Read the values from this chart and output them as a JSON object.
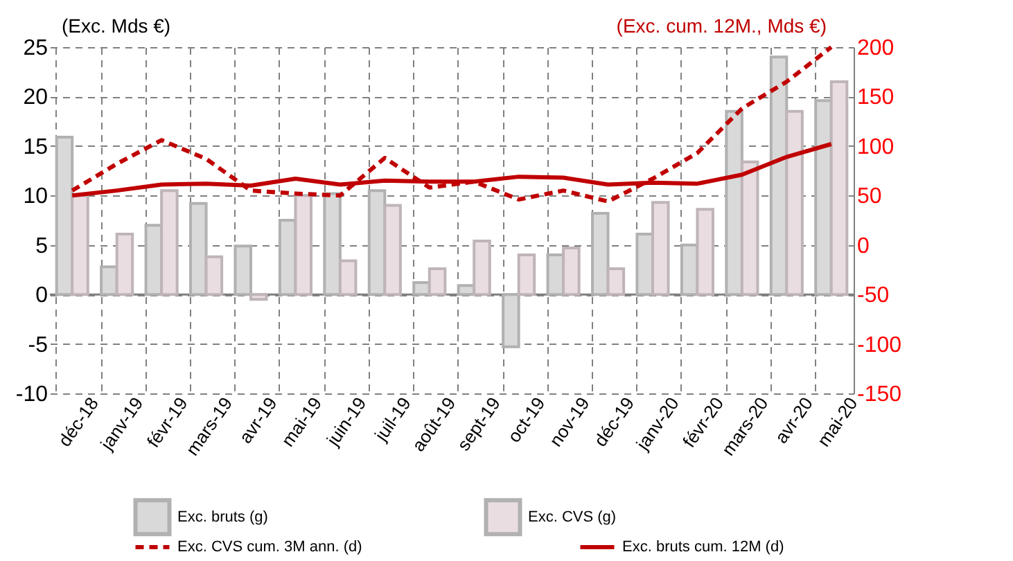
{
  "chart_data": {
    "type": "bar",
    "ylabel": "(Exc. Mds €)",
    "y2label": "(Exc. cum. 12M., Mds €)",
    "categories": [
      "déc-18",
      "janv-19",
      "févr-19",
      "mars-19",
      "avr-19",
      "mai-19",
      "juin-19",
      "juil-19",
      "août-19",
      "sept-19",
      "oct-19",
      "nov-19",
      "déc-19",
      "janv-20",
      "févr-20",
      "mars-20",
      "avr-20",
      "mai-20"
    ],
    "series": [
      {
        "name": "Exc. bruts (g)",
        "type": "bar",
        "color": "#d9d9d9",
        "values": [
          15.9,
          2.8,
          7.0,
          9.2,
          4.9,
          7.5,
          10.2,
          10.5,
          1.2,
          0.9,
          -5.3,
          4.0,
          8.2,
          6.1,
          5.0,
          18.5,
          24.0,
          19.6
        ]
      },
      {
        "name": "Exc. CVS (g)",
        "type": "bar",
        "color": "#eadde1",
        "values": [
          10.0,
          6.1,
          10.5,
          3.8,
          -0.5,
          10.0,
          3.4,
          9.0,
          2.6,
          5.4,
          4.0,
          4.7,
          2.6,
          9.3,
          8.6,
          13.4,
          18.5,
          21.5
        ]
      },
      {
        "name": "Exc. CVS cum. 3M ann. (d)",
        "type": "line",
        "axis": "y2",
        "line_style": "dashed",
        "color": "#c00000",
        "values": [
          55,
          82,
          106,
          87,
          55,
          52,
          50,
          88,
          58,
          64,
          46,
          55,
          44,
          67,
          93,
          138,
          165,
          200
        ]
      },
      {
        "name": "Exc. bruts cum. 12M (d)",
        "type": "line",
        "axis": "y2",
        "line_style": "solid",
        "color": "#c00000",
        "values": [
          50,
          55,
          61,
          62,
          60,
          67,
          61,
          65,
          64,
          64,
          69,
          68,
          61,
          63,
          62,
          71,
          89,
          102
        ]
      }
    ],
    "ylim": [
      -10,
      25
    ],
    "yticks": [
      -10,
      -5,
      0,
      5,
      10,
      15,
      20,
      25
    ],
    "y2lim": [
      -150,
      200
    ],
    "y2ticks": [
      -150,
      -100,
      -50,
      0,
      50,
      100,
      150,
      200
    ],
    "grid": true,
    "legend": "bottom"
  }
}
